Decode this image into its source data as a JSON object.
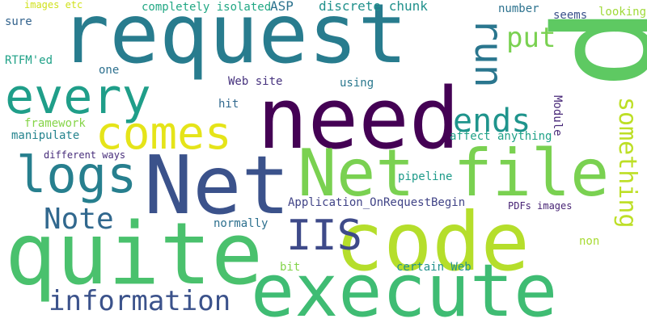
{
  "words": [
    {
      "text": "request",
      "color": "#287c8e"
    },
    {
      "text": "p",
      "color": "#5ec962"
    },
    {
      "text": "need",
      "color": "#440154"
    },
    {
      "text": "Net",
      "color": "#3b528b"
    },
    {
      "text": "Net file",
      "color": "#7ad151"
    },
    {
      "text": "code",
      "color": "#b5de2b"
    },
    {
      "text": "quite",
      "color": "#4ac16d"
    },
    {
      "text": "execute",
      "color": "#3fbc73"
    },
    {
      "text": "every",
      "color": "#1f9e89"
    },
    {
      "text": "comes",
      "color": "#e5e419"
    },
    {
      "text": "logs",
      "color": "#277f8e"
    },
    {
      "text": "run",
      "color": "#2a768e"
    },
    {
      "text": "put",
      "color": "#7ad151"
    },
    {
      "text": "ends",
      "color": "#1f948c"
    },
    {
      "text": "something",
      "color": "#bddf26"
    },
    {
      "text": "Note",
      "color": "#31688e"
    },
    {
      "text": "IIS",
      "color": "#3e4a89"
    },
    {
      "text": "information",
      "color": "#3b528b"
    },
    {
      "text": "images etc",
      "color": "#d0e11c"
    },
    {
      "text": "completely isolated",
      "color": "#22a884"
    },
    {
      "text": "ASP",
      "color": "#2c728e"
    },
    {
      "text": "discrete chunk",
      "color": "#21918c"
    },
    {
      "text": "number",
      "color": "#2c728e"
    },
    {
      "text": "seems",
      "color": "#3b528b"
    },
    {
      "text": "looking",
      "color": "#a0da39"
    },
    {
      "text": "sure",
      "color": "#33638d"
    },
    {
      "text": "RTFM'ed",
      "color": "#1fa187"
    },
    {
      "text": "one",
      "color": "#2d708e"
    },
    {
      "text": "Web site",
      "color": "#46327e"
    },
    {
      "text": "using",
      "color": "#2a788e"
    },
    {
      "text": "hit",
      "color": "#31688e"
    },
    {
      "text": "framework",
      "color": "#86d549"
    },
    {
      "text": "manipulate",
      "color": "#25848e"
    },
    {
      "text": "Module",
      "color": "#482878"
    },
    {
      "text": "affect anything",
      "color": "#1fa187"
    },
    {
      "text": "different ways",
      "color": "#472d7b"
    },
    {
      "text": "pipeline",
      "color": "#1e9b8a"
    },
    {
      "text": "Application_OnRequestBegin",
      "color": "#414487"
    },
    {
      "text": "PDFs images",
      "color": "#482475"
    },
    {
      "text": "normally",
      "color": "#2d708e"
    },
    {
      "text": "non",
      "color": "#a8db34"
    },
    {
      "text": "bit",
      "color": "#84d44b"
    },
    {
      "text": "certain Web",
      "color": "#21918c"
    }
  ]
}
